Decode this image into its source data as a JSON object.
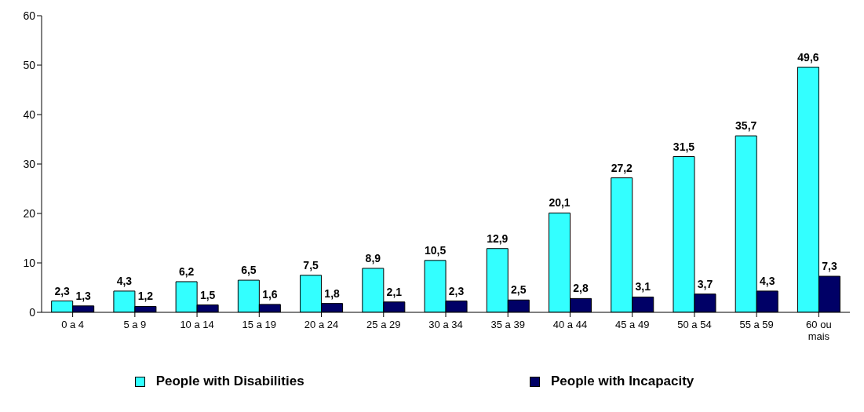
{
  "chart_data": {
    "type": "bar",
    "categories": [
      "0 a 4",
      "5 a 9",
      "10 a 14",
      "15 a 19",
      "20 a 24",
      "25 a 29",
      "30 a 34",
      "35 a 39",
      "40 a 44",
      "45 a 49",
      "50 a 54",
      "55 a 59",
      "60 ou mais"
    ],
    "series": [
      {
        "name": "People with Disabilities",
        "color": "#33ffff",
        "values": [
          2.3,
          4.3,
          6.2,
          6.5,
          7.5,
          8.9,
          10.5,
          12.9,
          20.1,
          27.2,
          31.5,
          35.7,
          49.6
        ],
        "value_labels": [
          "2,3",
          "4,3",
          "6,2",
          "6,5",
          "7,5",
          "8,9",
          "10,5",
          "12,9",
          "20,1",
          "27,2",
          "31,5",
          "35,7",
          "49,6"
        ]
      },
      {
        "name": "People with Incapacity",
        "color": "#000066",
        "values": [
          1.3,
          1.2,
          1.5,
          1.6,
          1.8,
          2.1,
          2.3,
          2.5,
          2.8,
          3.1,
          3.7,
          4.3,
          7.3
        ],
        "value_labels": [
          "1,3",
          "1,2",
          "1,5",
          "1,6",
          "1,8",
          "2,1",
          "2,3",
          "2,5",
          "2,8",
          "3,1",
          "3,7",
          "4,3",
          "7,3"
        ]
      }
    ],
    "ylim": [
      0,
      60
    ],
    "yticks": [
      0,
      10,
      20,
      30,
      40,
      50,
      60
    ],
    "grid": false,
    "legend": "bottom"
  }
}
